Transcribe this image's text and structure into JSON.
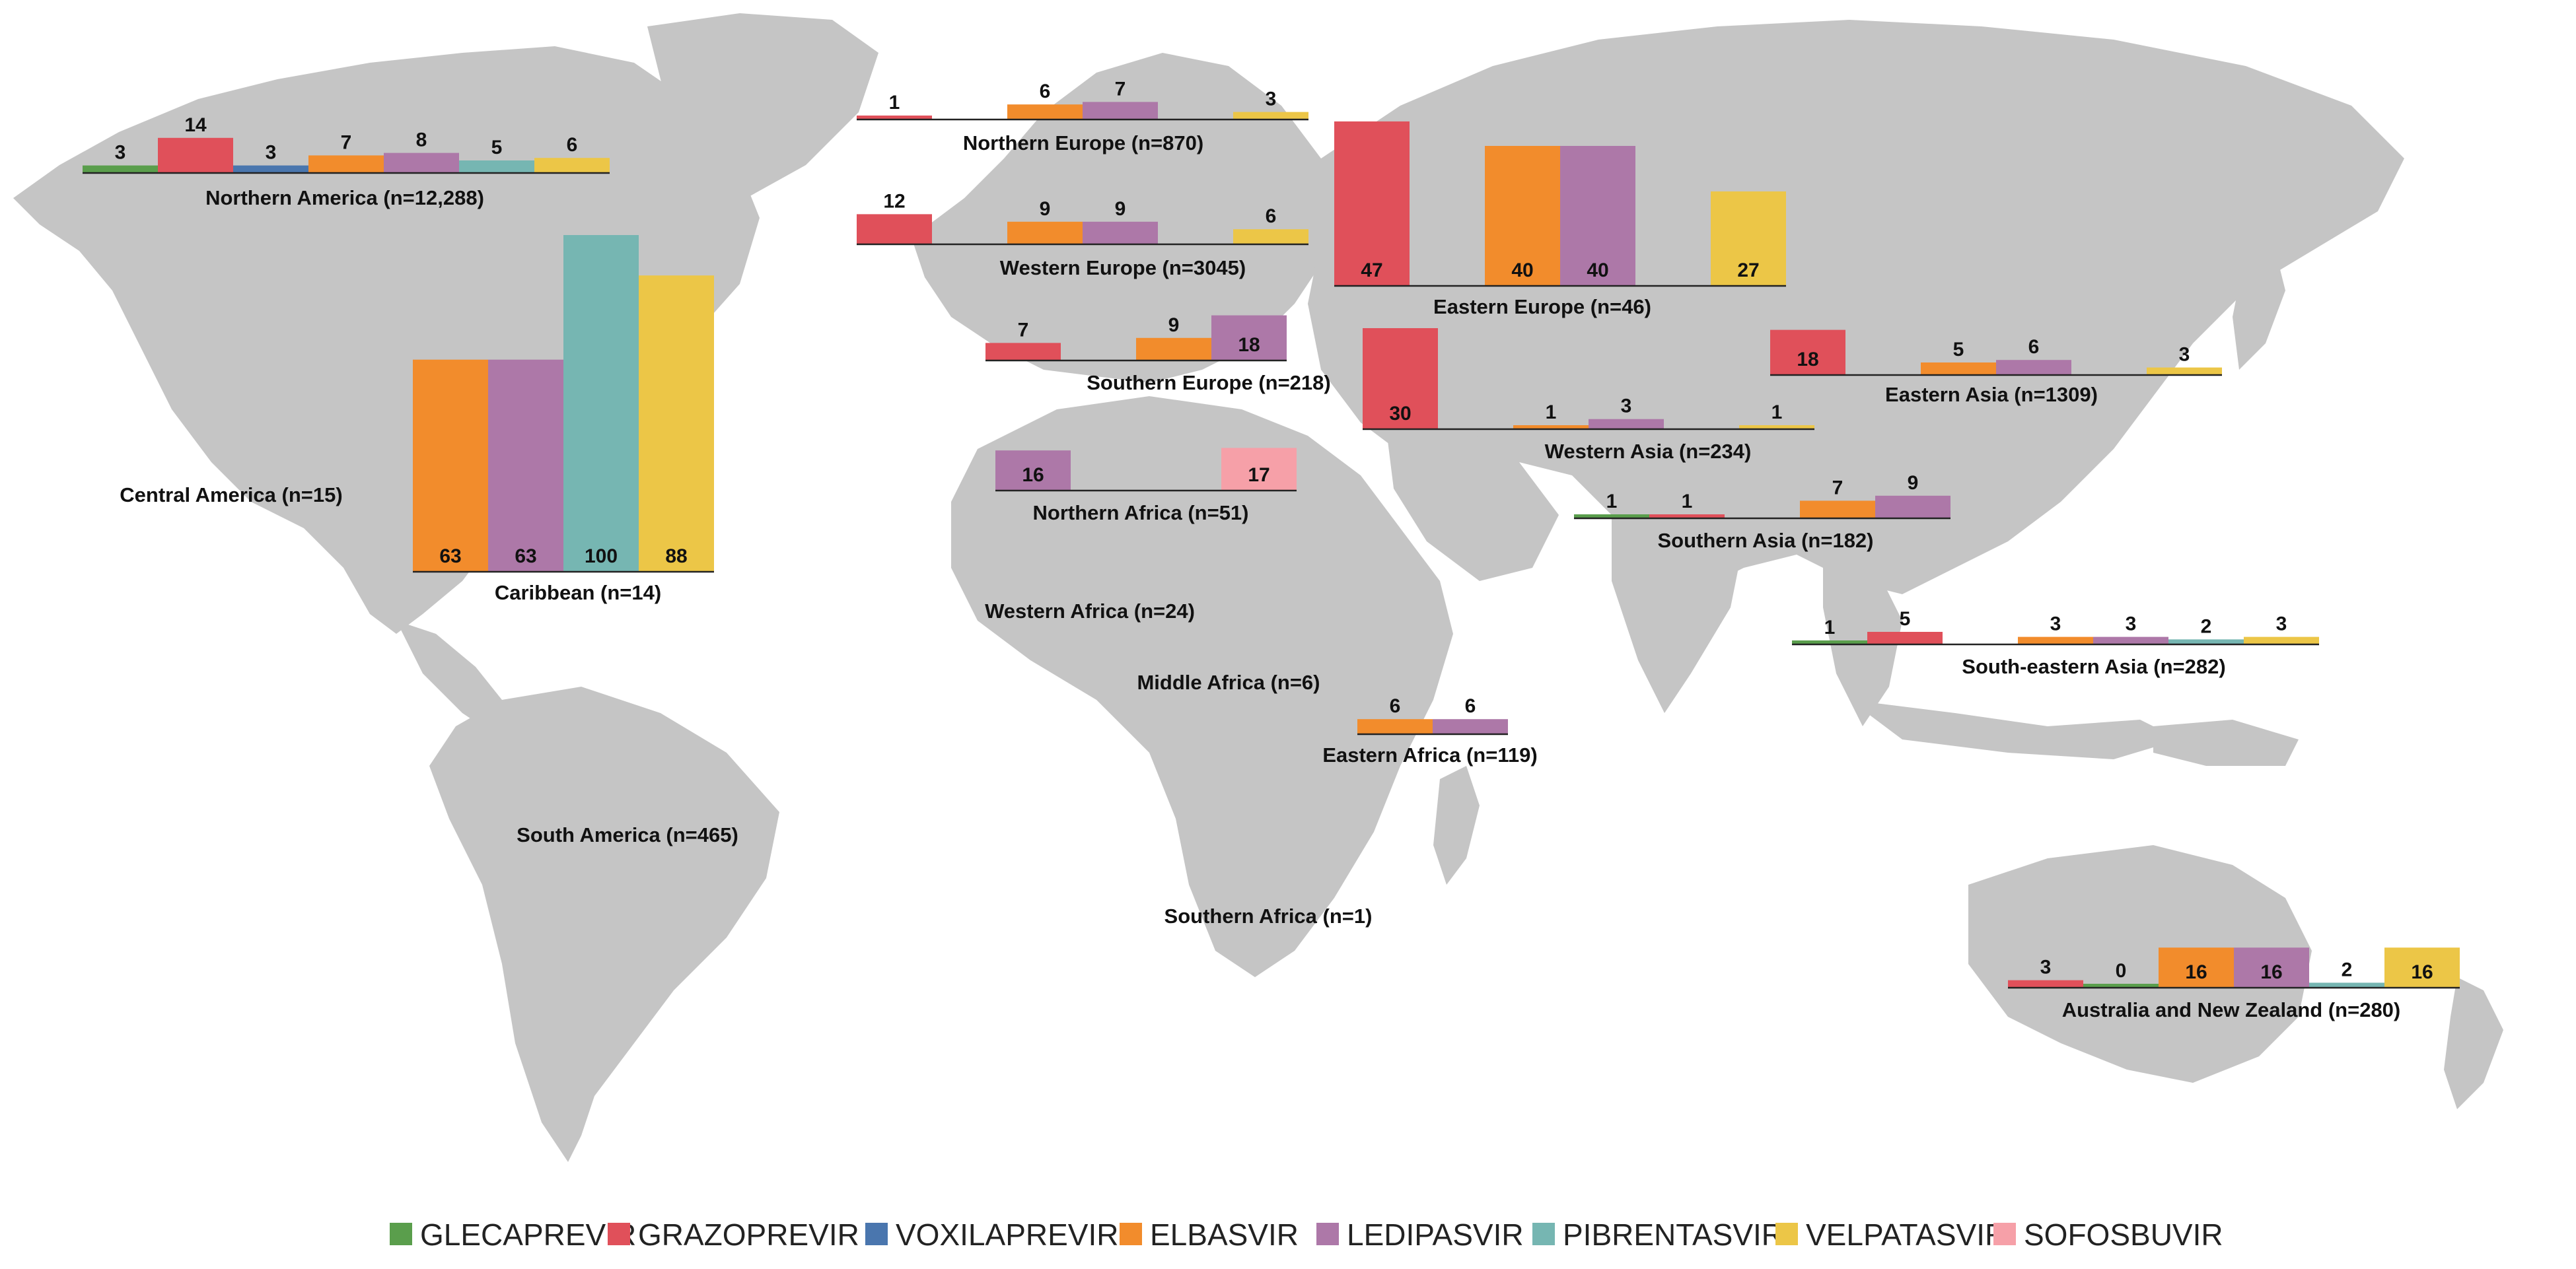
{
  "colors": {
    "GLECAPREVIR": "#5a9e4c",
    "GRAZOPREVIR": "#e0505a",
    "VOXILAPREVIR": "#4a76ae",
    "ELBASVIR": "#f28c2c",
    "LEDIPASVIR": "#ad78a8",
    "PIBRENTASVIR": "#76b6b2",
    "VELPATASVIR": "#ecc647",
    "SOFOSBUVIR": "#f6a0a8"
  },
  "legend": [
    "GLECAPREVIR",
    "GRAZOPREVIR",
    "VOXILAPREVIR",
    "ELBASVIR",
    "LEDIPASVIR",
    "PIBRENTASVIR",
    "VELPATASVIR",
    "SOFOSBUVIR"
  ],
  "region_labels_only": [
    "Central America (n=15)",
    "Western Africa (n=24)",
    "Middle Africa (n=6)",
    "South America (n=465)",
    "Southern Africa (n=1)"
  ],
  "chart_data": [
    {
      "type": "bar",
      "region": "Northern America (n=12,288)",
      "ylim": [
        0,
        100
      ],
      "categories": [
        "GLECAPREVIR",
        "GRAZOPREVIR",
        "VOXILAPREVIR",
        "ELBASVIR",
        "LEDIPASVIR",
        "PIBRENTASVIR",
        "VELPATASVIR"
      ],
      "values": [
        3,
        14,
        3,
        7,
        8,
        5,
        6
      ]
    },
    {
      "type": "bar",
      "region": "Northern Europe (n=870)",
      "ylim": [
        0,
        100
      ],
      "categories": [
        "GRAZOPREVIR",
        "",
        "ELBASVIR",
        "LEDIPASVIR",
        "",
        "VELPATASVIR"
      ],
      "values": [
        1,
        null,
        6,
        7,
        null,
        3
      ]
    },
    {
      "type": "bar",
      "region": "Western Europe (n=3045)",
      "ylim": [
        0,
        100
      ],
      "categories": [
        "GRAZOPREVIR",
        "",
        "ELBASVIR",
        "LEDIPASVIR",
        "",
        "VELPATASVIR"
      ],
      "values": [
        12,
        null,
        9,
        9,
        null,
        6
      ]
    },
    {
      "type": "bar",
      "region": "Eastern Europe (n=46)",
      "ylim": [
        0,
        100
      ],
      "categories": [
        "GRAZOPREVIR",
        "",
        "ELBASVIR",
        "LEDIPASVIR",
        "",
        "VELPATASVIR"
      ],
      "values": [
        47,
        null,
        40,
        40,
        null,
        27
      ]
    },
    {
      "type": "bar",
      "region": "Southern Europe (n=218)",
      "ylim": [
        0,
        100
      ],
      "categories": [
        "GRAZOPREVIR",
        "",
        "ELBASVIR",
        "LEDIPASVIR"
      ],
      "values": [
        7,
        null,
        9,
        18
      ]
    },
    {
      "type": "bar",
      "region": "Northern Africa (n=51)",
      "ylim": [
        0,
        100
      ],
      "categories": [
        "LEDIPASVIR",
        "",
        "",
        "SOFOSBUVIR"
      ],
      "values": [
        16,
        null,
        null,
        17
      ]
    },
    {
      "type": "bar",
      "region": "Caribbean (n=14)",
      "ylim": [
        0,
        100
      ],
      "categories": [
        "ELBASVIR",
        "LEDIPASVIR",
        "PIBRENTASVIR",
        "VELPATASVIR"
      ],
      "values": [
        63,
        63,
        100,
        88
      ]
    },
    {
      "type": "bar",
      "region": "Western Asia (n=234)",
      "ylim": [
        0,
        100
      ],
      "categories": [
        "GRAZOPREVIR",
        "",
        "ELBASVIR",
        "LEDIPASVIR",
        "",
        "VELPATASVIR"
      ],
      "values": [
        30,
        null,
        1,
        3,
        null,
        1
      ]
    },
    {
      "type": "bar",
      "region": "Eastern Asia (n=1309)",
      "ylim": [
        0,
        100
      ],
      "categories": [
        "GRAZOPREVIR",
        "",
        "ELBASVIR",
        "LEDIPASVIR",
        "",
        "VELPATASVIR"
      ],
      "values": [
        18,
        null,
        5,
        6,
        null,
        3
      ]
    },
    {
      "type": "bar",
      "region": "Southern Asia (n=182)",
      "ylim": [
        0,
        100
      ],
      "categories": [
        "GLECAPREVIR",
        "GRAZOPREVIR",
        "",
        "ELBASVIR",
        "LEDIPASVIR"
      ],
      "values": [
        1,
        1,
        null,
        7,
        9
      ]
    },
    {
      "type": "bar",
      "region": "South-eastern Asia (n=282)",
      "ylim": [
        0,
        100
      ],
      "categories": [
        "GLECAPREVIR",
        "GRAZOPREVIR",
        "",
        "ELBASVIR",
        "LEDIPASVIR",
        "PIBRENTASVIR",
        "VELPATASVIR"
      ],
      "values": [
        1,
        5,
        null,
        3,
        3,
        2,
        3
      ]
    },
    {
      "type": "bar",
      "region": "Eastern Africa (n=119)",
      "ylim": [
        0,
        100
      ],
      "categories": [
        "ELBASVIR",
        "LEDIPASVIR"
      ],
      "values": [
        6,
        6
      ]
    },
    {
      "type": "bar",
      "region": "Australia and New Zealand (n=280)",
      "ylim": [
        0,
        100
      ],
      "categories": [
        "GRAZOPREVIR",
        "GLECAPREVIR",
        "ELBASVIR",
        "LEDIPASVIR",
        "PIBRENTASVIR",
        "VELPATASVIR"
      ],
      "values": [
        3,
        0,
        16,
        16,
        2,
        16
      ]
    }
  ]
}
